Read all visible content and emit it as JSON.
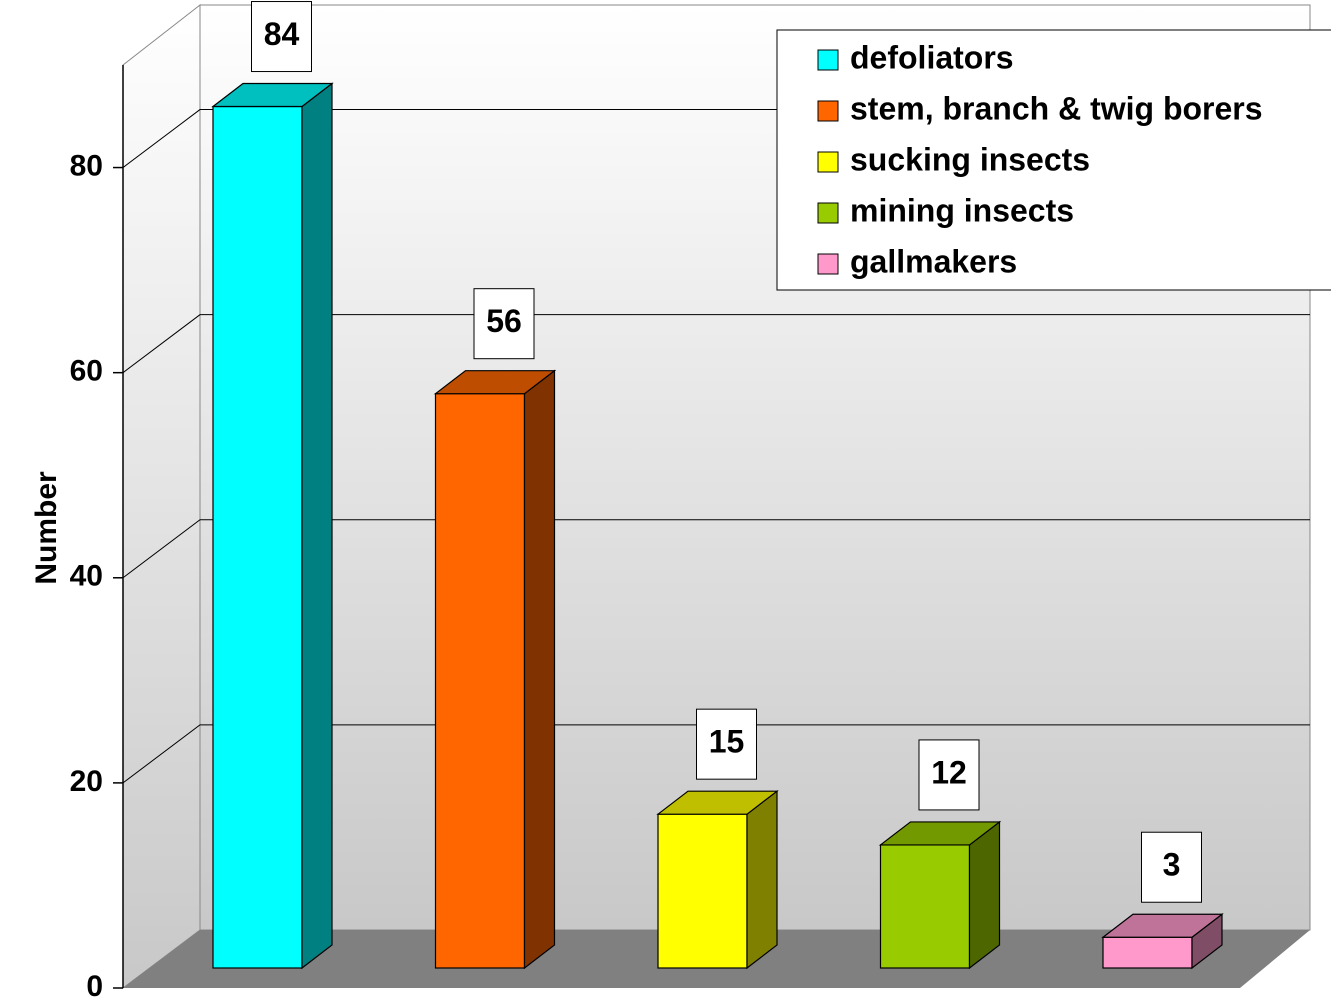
{
  "chart_data": {
    "type": "bar3d",
    "y_label": "Number",
    "categories": [
      "defoliators",
      "stem, branch & twig borers",
      "sucking insects",
      "mining insects",
      "gallmakers"
    ],
    "values": [
      84,
      56,
      15,
      12,
      3
    ],
    "colors": [
      "#00ffff",
      "#ff6600",
      "#ffff00",
      "#99cc00",
      "#ff99cc"
    ],
    "ylim": [
      0,
      90
    ],
    "yticks": [
      0,
      20,
      40,
      60,
      80
    ],
    "grid": true,
    "legend": "top-right"
  }
}
